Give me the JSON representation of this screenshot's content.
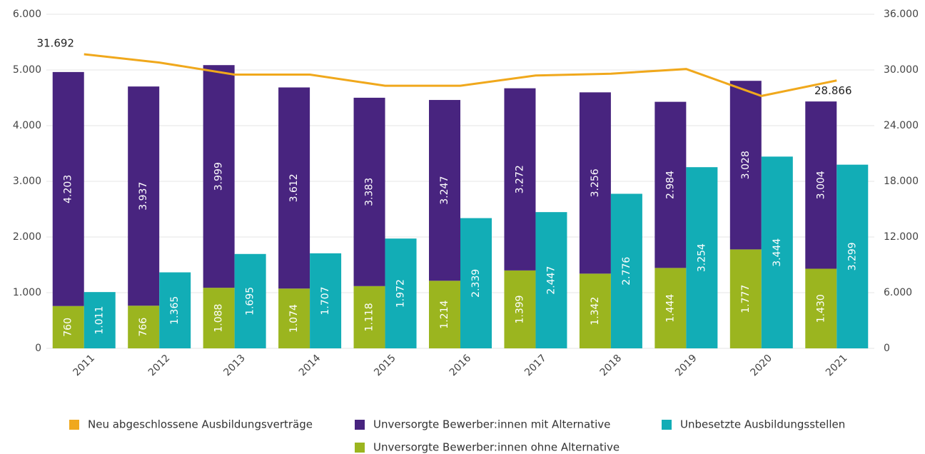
{
  "chart_data": {
    "type": "bar",
    "categories": [
      "2011",
      "2012",
      "2013",
      "2014",
      "2015",
      "2016",
      "2017",
      "2018",
      "2019",
      "2020",
      "2021"
    ],
    "series": [
      {
        "name": "Neu abgeschlossene Ausbildungsverträge",
        "type": "line",
        "axis": "y2",
        "color": "#f0a81c",
        "values": [
          31692,
          30800,
          29500,
          29500,
          28300,
          28300,
          29400,
          29600,
          30100,
          27200,
          28866
        ],
        "value_labels": [
          "31.692",
          null,
          null,
          null,
          null,
          null,
          null,
          null,
          null,
          null,
          "28.866"
        ]
      },
      {
        "name": "Unversorgte Bewerber:innen mit Alternative",
        "color": "#48247f",
        "values": [
          4203,
          3937,
          3999,
          3612,
          3383,
          3247,
          3272,
          3256,
          2984,
          3028,
          3004
        ],
        "value_labels": [
          "4.203",
          "3.937",
          "3.999",
          "3.612",
          "3.383",
          "3.247",
          "3.272",
          "3.256",
          "2.984",
          "3.028",
          "3.004"
        ]
      },
      {
        "name": "Unbesetzte Ausbildungsstellen",
        "color": "#12adb6",
        "values": [
          1011,
          1365,
          1695,
          1707,
          1972,
          2339,
          2447,
          2776,
          3254,
          3444,
          3299
        ],
        "value_labels": [
          "1.011",
          "1.365",
          "1.695",
          "1.707",
          "1.972",
          "2.339",
          "2.447",
          "2.776",
          "3.254",
          "3.444",
          "3.299"
        ]
      },
      {
        "name": "Unversorgte Bewerber:innen ohne Alternative",
        "color": "#9bb51f",
        "values": [
          760,
          766,
          1088,
          1074,
          1118,
          1214,
          1399,
          1342,
          1444,
          1777,
          1430
        ],
        "value_labels": [
          "760",
          "766",
          "1.088",
          "1.074",
          "1.118",
          "1.214",
          "1.399",
          "1.342",
          "1.444",
          "1.777",
          "1.430"
        ]
      }
    ],
    "ylim": [
      0,
      6000
    ],
    "yticks": [
      0,
      {
        "value": 1000,
        "label": "1.000"
      },
      {
        "value": 2000,
        "label": "2.000"
      },
      {
        "value": 3000,
        "label": "3.000"
      },
      {
        "value": 4000,
        "label": "4.000"
      },
      {
        "value": 5000,
        "label": "5.000"
      },
      {
        "value": 6000,
        "label": "6.000"
      }
    ],
    "y2lim": [
      0,
      36000
    ],
    "y2ticks": [
      0,
      {
        "value": 6000,
        "label": "6.000"
      },
      {
        "value": 12000,
        "label": "12.000"
      },
      {
        "value": 18000,
        "label": "18.000"
      },
      {
        "value": 24000,
        "label": "24.000"
      },
      {
        "value": 30000,
        "label": "30.000"
      },
      {
        "value": 36000,
        "label": "36.000"
      }
    ],
    "grid": true,
    "legend": "bottom"
  }
}
